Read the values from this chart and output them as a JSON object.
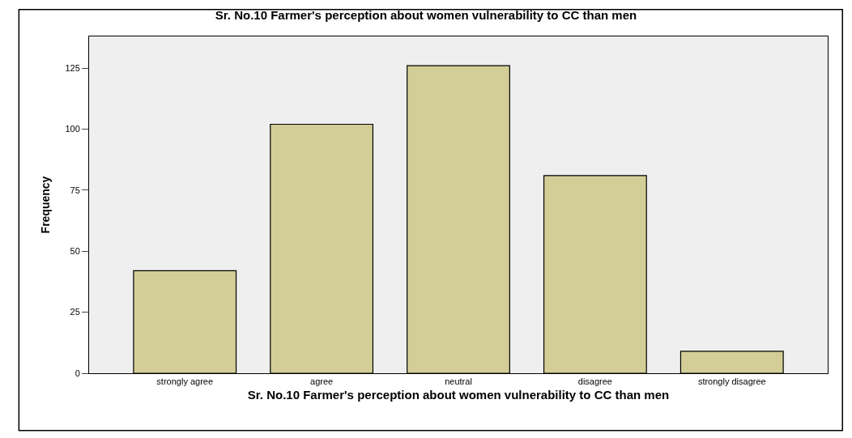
{
  "chart_data": {
    "type": "bar",
    "title": "Sr. No.10 Farmer's perception about women vulnerability to CC than men",
    "xlabel": "Sr. No.10 Farmer's perception about women vulnerability to CC than men",
    "ylabel": "Frequency",
    "categories": [
      "strongly agree",
      "agree",
      "neutral",
      "disagree",
      "strongly disagree"
    ],
    "values": [
      42,
      102,
      126,
      81,
      9
    ],
    "color": "#d3ce97",
    "ylim": [
      0,
      138
    ],
    "yticks": [
      0,
      25,
      50,
      75,
      100,
      125
    ],
    "grid": false
  }
}
